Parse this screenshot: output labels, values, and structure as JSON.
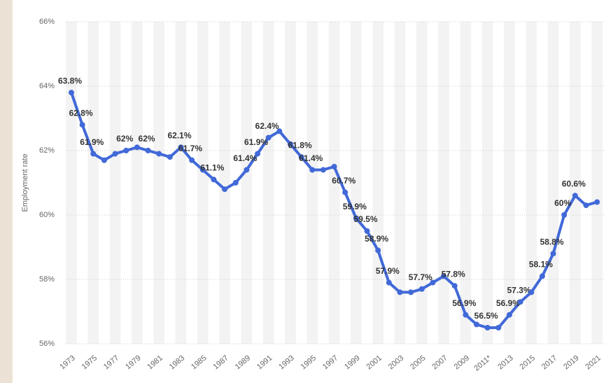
{
  "chart_data": {
    "type": "line",
    "y_label": "Employment rate",
    "categories": [
      "1973",
      null,
      "1975",
      null,
      "1977",
      null,
      "1979",
      null,
      "1981",
      null,
      "1983",
      null,
      "1985",
      null,
      "1987",
      null,
      "1989",
      null,
      "1991",
      null,
      "1993",
      null,
      "1995",
      null,
      "1997",
      null,
      "1999",
      null,
      "2001",
      null,
      "2003",
      null,
      "2005",
      null,
      "2007",
      null,
      "2009",
      null,
      "2011*",
      null,
      "2013",
      null,
      "2015",
      null,
      "2017",
      null,
      "2019",
      null,
      "2021"
    ],
    "series": [
      {
        "color": "#4169d8",
        "values": [
          63.8,
          62.8,
          61.9,
          61.7,
          61.9,
          62.0,
          62.1,
          62.0,
          61.9,
          61.8,
          62.1,
          61.7,
          61.4,
          61.1,
          60.8,
          61.0,
          61.4,
          61.9,
          62.4,
          62.6,
          62.2,
          61.8,
          61.4,
          61.4,
          61.5,
          60.7,
          59.9,
          59.5,
          58.9,
          57.9,
          57.6,
          57.6,
          57.7,
          57.9,
          58.1,
          57.8,
          56.9,
          56.6,
          56.5,
          56.5,
          56.9,
          57.3,
          57.6,
          58.1,
          58.8,
          60.0,
          60.6,
          60.3,
          60.4
        ],
        "value_labels": [
          "63.8%",
          "62.8%",
          "61.9%",
          null,
          null,
          "62%",
          null,
          "62%",
          null,
          null,
          "62.1%",
          "61.7%",
          null,
          "61.1%",
          null,
          null,
          "61.4%",
          "61.9%",
          "62.4%",
          null,
          null,
          "61.8%",
          "61.4%",
          null,
          null,
          "60.7%",
          "59.9%",
          "59.5%",
          "58.9%",
          "57.9%",
          null,
          null,
          "57.7%",
          null,
          null,
          "57.8%",
          "56.9%",
          null,
          "56.5%",
          null,
          "56.9%",
          "57.3%",
          null,
          "58.1%",
          "58.8%",
          "60%",
          "60.6%",
          null,
          null
        ]
      }
    ],
    "ylim": [
      56,
      66
    ],
    "yticks": [
      {
        "value": 56,
        "label": "56%"
      },
      {
        "value": 58,
        "label": "58%"
      },
      {
        "value": 60,
        "label": "60%"
      },
      {
        "value": 62,
        "label": "62%"
      },
      {
        "value": 64,
        "label": "64%"
      },
      {
        "value": 66,
        "label": "66%"
      }
    ],
    "grid": true
  }
}
